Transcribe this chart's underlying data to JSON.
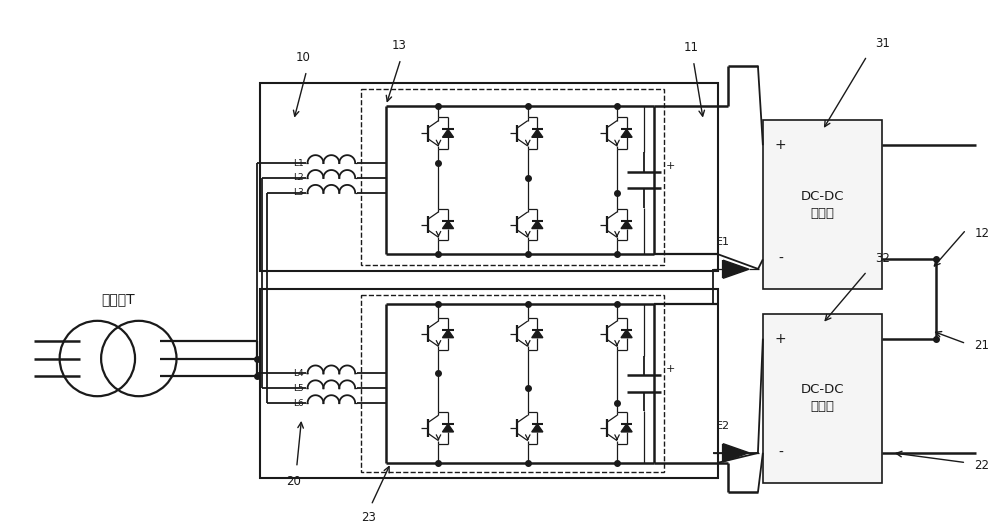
{
  "fig_width": 10.0,
  "fig_height": 5.29,
  "bg_color": "#ffffff",
  "line_color": "#1a1a1a",
  "lw": 1.3,
  "tlw": 0.9,
  "labels": {
    "transformer": "变压器T",
    "dc_dc1": "DC-DC\n变换器",
    "dc_dc2": "DC-DC\n变换器",
    "L1": "L1",
    "L2": "L2",
    "L3": "L3",
    "L4": "L4",
    "L5": "L5",
    "L6": "L6",
    "E1": "E1",
    "E2": "E2",
    "n10": "10",
    "n11": "11",
    "n12": "12",
    "n13": "13",
    "n20": "20",
    "n21": "21",
    "n22": "22",
    "n23": "23",
    "n31": "31",
    "n32": "32",
    "plus": "+",
    "minus": "-"
  }
}
